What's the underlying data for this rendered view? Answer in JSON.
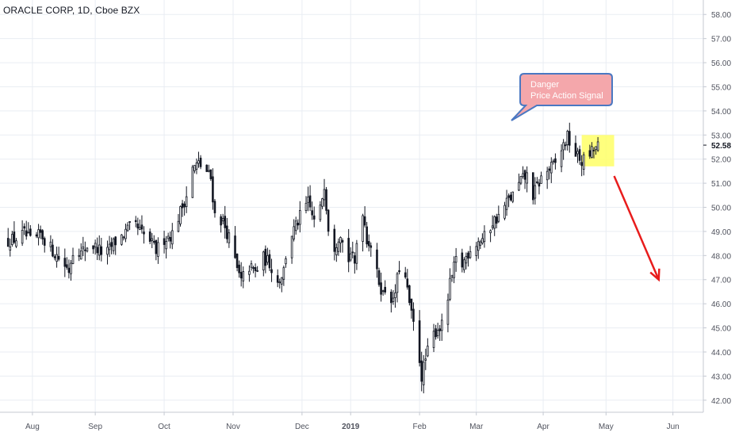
{
  "header": {
    "title": "ORACLE CORP, 1D, Cboe BZX"
  },
  "annotation": {
    "line1": "Danger",
    "line2": "Price Action Signal"
  },
  "colors": {
    "candle": "#131722",
    "grid": "#e9edf3",
    "highlight": "#ffff66",
    "callout_fill": "#f4a7ab",
    "callout_stroke": "#4a78c2",
    "arrow": "#e81c1c",
    "axis_text": "#50535e"
  },
  "chart_data": {
    "type": "candlestick",
    "title": "ORACLE CORP, 1D, Cboe BZX",
    "last_price_label": "52.58",
    "y_range": [
      41.5,
      58.6
    ],
    "y_ticks": [
      "42.00",
      "43.00",
      "44.00",
      "45.00",
      "46.00",
      "47.00",
      "48.00",
      "49.00",
      "50.00",
      "51.00",
      "52.00",
      "53.00",
      "54.00",
      "55.00",
      "56.00",
      "57.00",
      "58.00"
    ],
    "x_ticks": [
      "Aug",
      "Sep",
      "Oct",
      "Nov",
      "Dec",
      "2019",
      "Feb",
      "Mar",
      "Apr",
      "May",
      "Jun"
    ],
    "close_path": [
      [
        0,
        48.6
      ],
      [
        4,
        48.7
      ],
      [
        8,
        48.9
      ],
      [
        12,
        48.5
      ],
      [
        16,
        48.9
      ],
      [
        22,
        48.2
      ],
      [
        26,
        47.8
      ],
      [
        30,
        47.4
      ],
      [
        33,
        48.6
      ],
      [
        36,
        48.1
      ],
      [
        40,
        48.5
      ],
      [
        44,
        48.3
      ],
      [
        48,
        48.0
      ],
      [
        52,
        48.5
      ],
      [
        56,
        48.8
      ],
      [
        62,
        49.3
      ],
      [
        66,
        48.9
      ],
      [
        70,
        48.6
      ],
      [
        73,
        48.2
      ],
      [
        77,
        48.7
      ],
      [
        81,
        48.9
      ],
      [
        84,
        49.6
      ],
      [
        88,
        50.5
      ],
      [
        91,
        51.6
      ],
      [
        94,
        51.8
      ],
      [
        97,
        51.6
      ],
      [
        100,
        51.2
      ],
      [
        102,
        49.7
      ],
      [
        106,
        49.4
      ],
      [
        110,
        48.5
      ],
      [
        113,
        47.4
      ],
      [
        115,
        46.9
      ],
      [
        118,
        47.6
      ],
      [
        122,
        47.3
      ],
      [
        126,
        47.9
      ],
      [
        129,
        47.7
      ],
      [
        133,
        46.9
      ],
      [
        136,
        47.4
      ],
      [
        138,
        48.6
      ],
      [
        142,
        49.2
      ],
      [
        145,
        49.8
      ],
      [
        148,
        50.2
      ],
      [
        151,
        49.4
      ],
      [
        154,
        49.9
      ],
      [
        156,
        51.0
      ],
      [
        158,
        49.2
      ],
      [
        161,
        48.4
      ],
      [
        164,
        49.0
      ],
      [
        167,
        47.6
      ],
      [
        169,
        48.1
      ],
      [
        171,
        47.6
      ],
      [
        173,
        49.5
      ],
      [
        175,
        49.9
      ],
      [
        177,
        48.7
      ],
      [
        180,
        48.3
      ],
      [
        182,
        47.2
      ],
      [
        185,
        46.4
      ],
      [
        187,
        46.8
      ],
      [
        190,
        46.0
      ],
      [
        193,
        47.5
      ],
      [
        196,
        47.0
      ],
      [
        199,
        45.5
      ],
      [
        202,
        44.4
      ],
      [
        204,
        43.0
      ],
      [
        206,
        43.7
      ],
      [
        209,
        44.6
      ],
      [
        212,
        45.0
      ],
      [
        215,
        45.1
      ],
      [
        218,
        46.8
      ],
      [
        221,
        47.8
      ],
      [
        224,
        47.6
      ],
      [
        228,
        48.3
      ],
      [
        232,
        48.6
      ],
      [
        236,
        48.8
      ],
      [
        239,
        49.4
      ],
      [
        242,
        49.6
      ],
      [
        246,
        50.2
      ],
      [
        250,
        50.6
      ],
      [
        253,
        51.1
      ],
      [
        256,
        51.3
      ],
      [
        259,
        50.5
      ],
      [
        263,
        51.2
      ],
      [
        266,
        51.5
      ],
      [
        270,
        51.8
      ],
      [
        273,
        52.4
      ],
      [
        276,
        52.9
      ],
      [
        280,
        52.2
      ],
      [
        283,
        51.9
      ],
      [
        286,
        52.1
      ],
      [
        289,
        52.4
      ],
      [
        292,
        52.58
      ]
    ],
    "x_day_ticks": [
      12,
      43,
      77,
      111,
      145,
      169,
      203,
      231,
      264,
      295,
      328
    ],
    "x_day_range": [
      -4,
      343
    ],
    "highlight_box": {
      "from_day": 283,
      "to_day": 299,
      "low": 51.7,
      "high": 53.0
    },
    "projection": {
      "from": [
        299,
        51.3
      ],
      "to": [
        321,
        47.0
      ]
    }
  }
}
